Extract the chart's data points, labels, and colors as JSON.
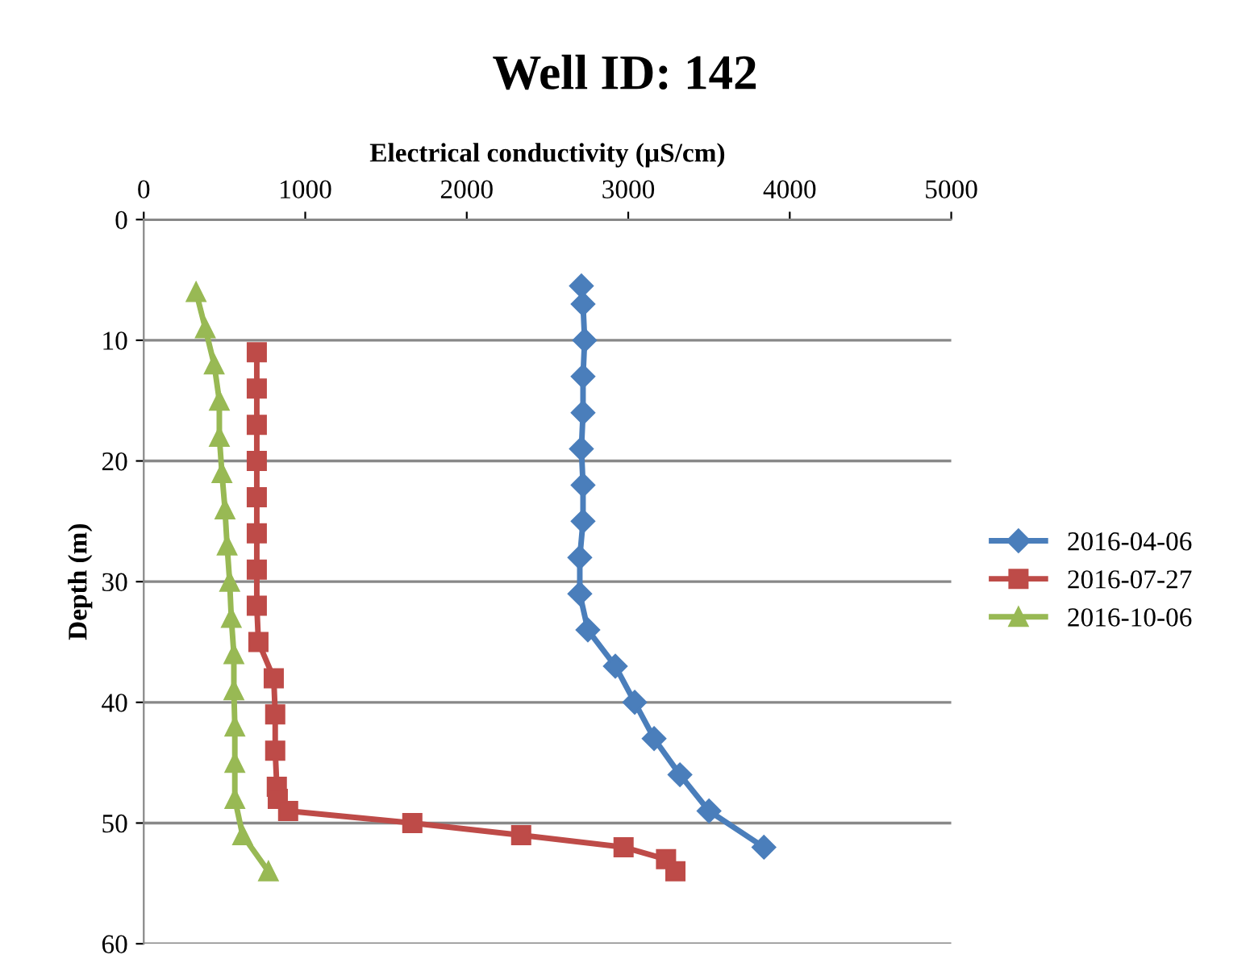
{
  "chart_data": {
    "type": "line",
    "title": "Well ID: 142",
    "xlabel": "Electrical conductivity (µS/cm)",
    "ylabel": "Depth (m)",
    "xlim": [
      0,
      5000
    ],
    "xticks": [
      0,
      1000,
      2000,
      3000,
      4000,
      5000
    ],
    "ylim": [
      60,
      0
    ],
    "yticks": [
      0,
      10,
      20,
      30,
      40,
      50,
      60
    ],
    "grid": "y",
    "legend": "right",
    "line_style": "solid",
    "series": [
      {
        "name": "2016-04-06",
        "color": "#4a7ebb",
        "marker": "diamond",
        "x": [
          2710,
          2720,
          2730,
          2720,
          2720,
          2710,
          2720,
          2720,
          2700,
          2700,
          2750,
          2920,
          3040,
          3160,
          3320,
          3500,
          3840
        ],
        "values": [
          5.5,
          7,
          10,
          13,
          16,
          19,
          22,
          25,
          28,
          31,
          34,
          37,
          40,
          43,
          46,
          49,
          52
        ]
      },
      {
        "name": "2016-07-27",
        "color": "#be4b48",
        "marker": "square",
        "x": [
          700,
          700,
          700,
          700,
          700,
          700,
          700,
          700,
          710,
          805,
          814,
          814,
          824,
          830,
          894,
          1663,
          2337,
          2971,
          3234,
          3292
        ],
        "values": [
          11,
          14,
          17,
          20,
          23,
          26,
          29,
          32,
          35,
          38,
          41,
          44,
          47,
          48,
          49,
          50,
          51,
          52,
          53,
          54
        ]
      },
      {
        "name": "2016-10-06",
        "color": "#98b954",
        "marker": "triangle",
        "x": [
          324,
          381,
          436,
          468,
          468,
          484,
          503,
          516,
          532,
          542,
          558,
          558,
          564,
          564,
          564,
          612,
          772
        ],
        "values": [
          6,
          9,
          12,
          15,
          18,
          21,
          24,
          27,
          30,
          33,
          36,
          39,
          42,
          45,
          48,
          51,
          54
        ]
      }
    ]
  }
}
